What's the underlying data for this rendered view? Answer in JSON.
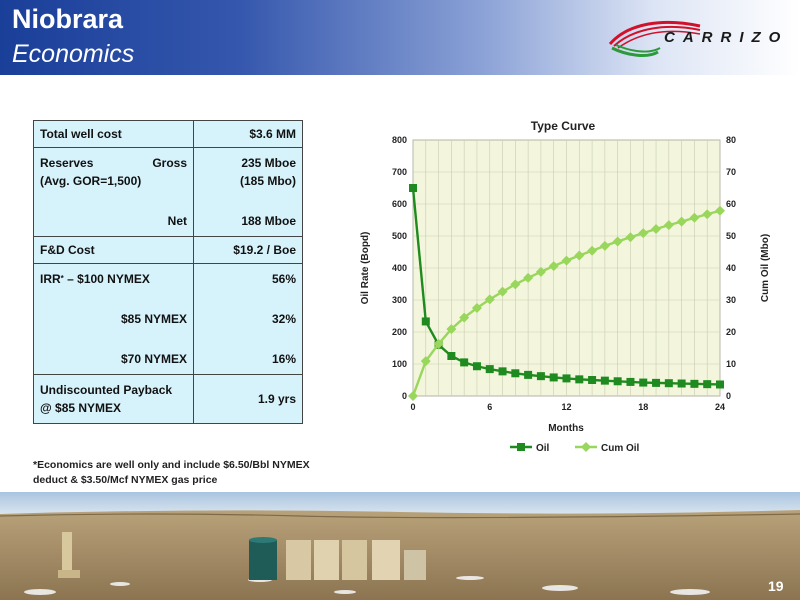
{
  "header": {
    "title_line1": "Niobrara",
    "title_line2": "Economics",
    "logo_text": "CARRIZO"
  },
  "table": {
    "total_well_cost_label": "Total well cost",
    "total_well_cost_value": "$3.6 MM",
    "reserves_label": "Reserves",
    "gross_label": "Gross",
    "gor_label": "(Avg. GOR=1,500)",
    "net_label": "Net",
    "gross_value": "235 Mboe",
    "gross_mbo": "(185 Mbo)",
    "net_value": "188 Mboe",
    "fd_cost_label": "F&D Cost",
    "fd_cost_value": "$19.2 / Boe",
    "irr_label": "IRR",
    "irr_sup": "*",
    "irr_100_label": "–  $100 NYMEX",
    "irr_100_value": "56%",
    "irr_85_label": "$85 NYMEX",
    "irr_85_value": "32%",
    "irr_70_label": "$70 NYMEX",
    "irr_70_value": "16%",
    "payback_label_1": "Undiscounted Payback",
    "payback_label_2": "@ $85 NYMEX",
    "payback_value": "1.9 yrs"
  },
  "footnote": {
    "line1": "*Economics are well only and include $6.50/Bbl NYMEX",
    "line2": "deduct & $3.50/Mcf NYMEX gas price"
  },
  "chart_data": {
    "type": "line",
    "title": "Type Curve",
    "xlabel": "Months",
    "ylabel": "Oil Rate (Bopd)",
    "y2label": "Cum Oil (Mbo)",
    "xlim": [
      0,
      24
    ],
    "ylim": [
      0,
      800
    ],
    "y2lim": [
      0,
      80
    ],
    "x_ticks": [
      0,
      6,
      12,
      18,
      24
    ],
    "y_ticks": [
      0,
      100,
      200,
      300,
      400,
      500,
      600,
      700,
      800
    ],
    "y2_ticks": [
      0,
      10,
      20,
      30,
      40,
      50,
      60,
      70,
      80
    ],
    "grid": true,
    "legend": "bottom",
    "x": [
      0,
      1,
      2,
      3,
      4,
      5,
      6,
      7,
      8,
      9,
      10,
      11,
      12,
      13,
      14,
      15,
      16,
      17,
      18,
      19,
      20,
      21,
      22,
      23,
      24
    ],
    "series": [
      {
        "name": "Oil",
        "axis": "left",
        "color": "#1f8a1f",
        "marker": "square",
        "values": [
          650,
          233,
          160,
          125,
          105,
          93,
          84,
          77,
          71,
          66,
          62,
          58,
          55,
          52,
          50,
          48,
          46,
          44,
          42,
          41,
          40,
          39,
          38,
          37,
          36
        ]
      },
      {
        "name": "Cum Oil",
        "axis": "right",
        "color": "#99d65c",
        "marker": "diamond",
        "values": [
          0,
          10.9,
          16.3,
          20.9,
          24.5,
          27.5,
          30.2,
          32.6,
          34.9,
          36.9,
          38.8,
          40.6,
          42.3,
          43.9,
          45.4,
          46.9,
          48.3,
          49.6,
          50.9,
          52.2,
          53.4,
          54.5,
          55.7,
          56.8,
          57.9
        ]
      }
    ]
  },
  "page_number": "19",
  "colors": {
    "header_blue": "#1a3f99",
    "table_fill": "#d6f3fc",
    "plot_bg": "#f3f6dc",
    "logo_red": "#d2102a",
    "logo_green": "#2c9a3a"
  }
}
